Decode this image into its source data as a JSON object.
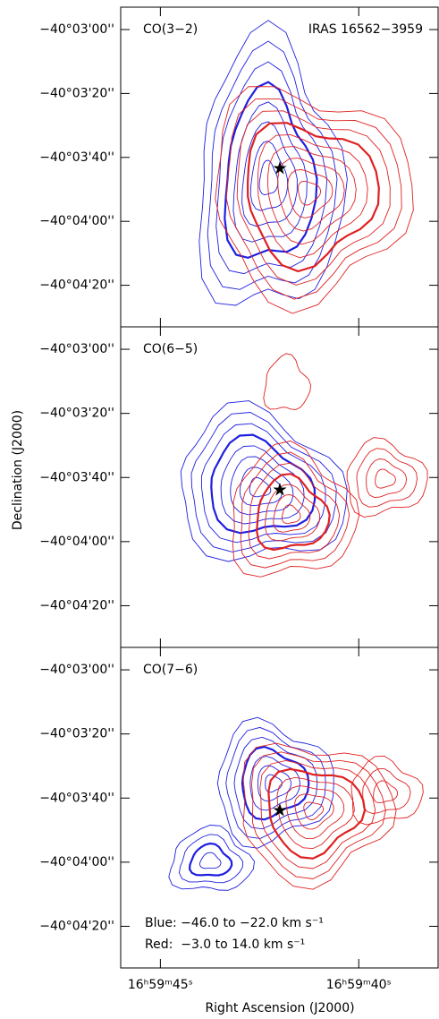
{
  "chart_data": [
    {
      "type": "contour",
      "title": "CO(3−2)",
      "annotation": "IRAS 16562−3959",
      "ylim": [
        -144273,
        -144173
      ],
      "yticks": [
        {
          "value": -144180,
          "label": "−40°03'00''"
        },
        {
          "value": -144200,
          "label": "−40°03'20''"
        },
        {
          "value": -144220,
          "label": "−40°03'40''"
        },
        {
          "value": -144240,
          "label": "−40°04'00''"
        },
        {
          "value": -144260,
          "label": "−40°04'20''"
        }
      ]
    },
    {
      "type": "contour",
      "title": "CO(6−5)",
      "ylabel": "Declination (J2000)",
      "ylim": [
        -144273,
        -144173
      ],
      "yticks": [
        {
          "value": -144180,
          "label": "−40°03'00''"
        },
        {
          "value": -144200,
          "label": "−40°03'20''"
        },
        {
          "value": -144220,
          "label": "−40°03'40''"
        },
        {
          "value": -144240,
          "label": "−40°04'00''"
        },
        {
          "value": -144260,
          "label": "−40°04'20''"
        }
      ]
    },
    {
      "type": "contour",
      "title": "CO(7−6)",
      "xlabel": "Right Ascension (J2000)",
      "ylim": [
        -144273,
        -144173
      ],
      "yticks": [
        {
          "value": -144180,
          "label": "−40°03'00''"
        },
        {
          "value": -144200,
          "label": "−40°03'20''"
        },
        {
          "value": -144220,
          "label": "−40°03'40''"
        },
        {
          "value": -144240,
          "label": "−40°04'00''"
        },
        {
          "value": -144260,
          "label": "−40°04'20''"
        }
      ],
      "xlim": [
        61186,
        61178
      ],
      "xticks": [
        {
          "value": 61185,
          "label": "16ʰ59ᵐ45ˢ"
        },
        {
          "value": 61180,
          "label": "16ʰ59ᵐ40ˢ"
        }
      ],
      "annotations": [
        "Blue: −46.0 to −22.0 km s⁻¹",
        "Red:  −3.0 to 14.0 km s⁻¹"
      ]
    }
  ]
}
